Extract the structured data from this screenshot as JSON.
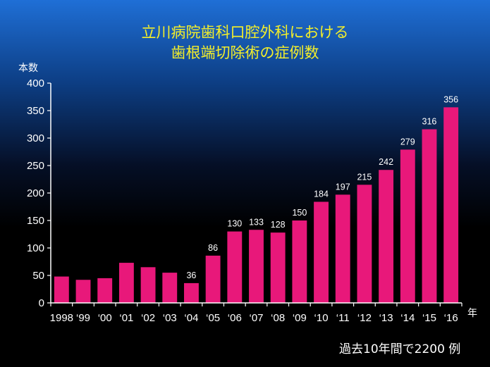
{
  "chart_data": {
    "type": "bar",
    "title_line1": "立川病院歯科口腔外科における",
    "title_line2": "歯根端切除術の症例数",
    "ylabel": "本数",
    "xunit": "年",
    "footer": "過去10年間で2200 例",
    "categories": [
      "1998",
      "‘99",
      "‘00",
      "‘01",
      "‘02",
      "‘03",
      "‘04",
      "‘05",
      "‘06",
      "‘07",
      "‘08",
      "‘09",
      "‘10",
      "‘11",
      "‘12",
      "‘13",
      "‘14",
      "‘15",
      "‘16"
    ],
    "values": [
      48,
      42,
      45,
      73,
      65,
      55,
      36,
      86,
      130,
      133,
      128,
      150,
      184,
      197,
      215,
      242,
      279,
      316,
      356
    ],
    "data_labels": [
      "",
      "",
      "",
      "",
      "",
      "",
      "36",
      "86",
      "130",
      "133",
      "128",
      "150",
      "184",
      "197",
      "215",
      "242",
      "279",
      "316",
      "356"
    ],
    "ylim": [
      0,
      400
    ],
    "yticks": [
      0,
      50,
      100,
      150,
      200,
      250,
      300,
      350,
      400
    ],
    "bar_color": "#e8187a",
    "axis_color": "#ffffff",
    "grid": false,
    "legend": "none"
  }
}
